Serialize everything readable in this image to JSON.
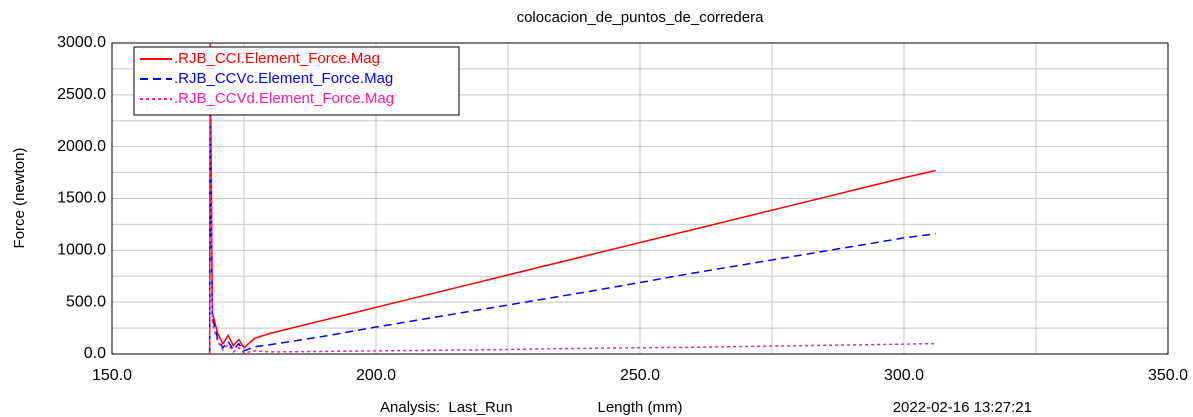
{
  "chart_data": {
    "type": "line",
    "title": "colocacion_de_puntos_de_corredera",
    "x_label": "Length (mm)",
    "y_label": "Force (newton)",
    "analysis": "Analysis:  Last_Run",
    "timestamp": "2022-02-16 13:27:21",
    "x": [
      168.5,
      168.6,
      169,
      170,
      171,
      172,
      173,
      174,
      175,
      177,
      180,
      190,
      200,
      220,
      240,
      260,
      280,
      300,
      306
    ],
    "series": [
      {
        "name": ".RJB_CCI.Element_Force.Mag",
        "color": "#ff0000",
        "dash": "solid",
        "values": [
          0,
          3000,
          400,
          200,
          100,
          180,
          80,
          140,
          60,
          150,
          200,
          325,
          450,
          700,
          950,
          1200,
          1450,
          1700,
          1770
        ]
      },
      {
        "name": ".RJB_CCVc.Element_Force.Mag",
        "color": "#0000ff",
        "dash": "dashed",
        "values": [
          0,
          2300,
          350,
          150,
          60,
          120,
          40,
          100,
          30,
          70,
          90,
          170,
          260,
          430,
          600,
          780,
          950,
          1120,
          1160
        ]
      },
      {
        "name": ".RJB_CCVd.Element_Force.Mag",
        "color": "#ff1aa8",
        "dash": "dotted",
        "values": [
          0,
          3000,
          300,
          120,
          40,
          90,
          20,
          60,
          10,
          30,
          20,
          25,
          30,
          40,
          55,
          65,
          80,
          95,
          100
        ]
      }
    ],
    "xlim": [
      150,
      350
    ],
    "ylim": [
      0,
      3000
    ],
    "xticks": [
      {
        "value": 150,
        "label": "150.0"
      },
      {
        "value": 200,
        "label": "200.0"
      },
      {
        "value": 250,
        "label": "250.0"
      },
      {
        "value": 300,
        "label": "300.0"
      },
      {
        "value": 350,
        "label": "350.0"
      }
    ],
    "yticks": [
      {
        "value": 0,
        "label": "0.0"
      },
      {
        "value": 500,
        "label": "500.0"
      },
      {
        "value": 1000,
        "label": "1000.0"
      },
      {
        "value": 1500,
        "label": "1500.0"
      },
      {
        "value": 2000,
        "label": "2000.0"
      },
      {
        "value": 2500,
        "label": "2500.0"
      },
      {
        "value": 3000,
        "label": "3000.0"
      }
    ],
    "grid": true,
    "legend": "upper-left"
  }
}
